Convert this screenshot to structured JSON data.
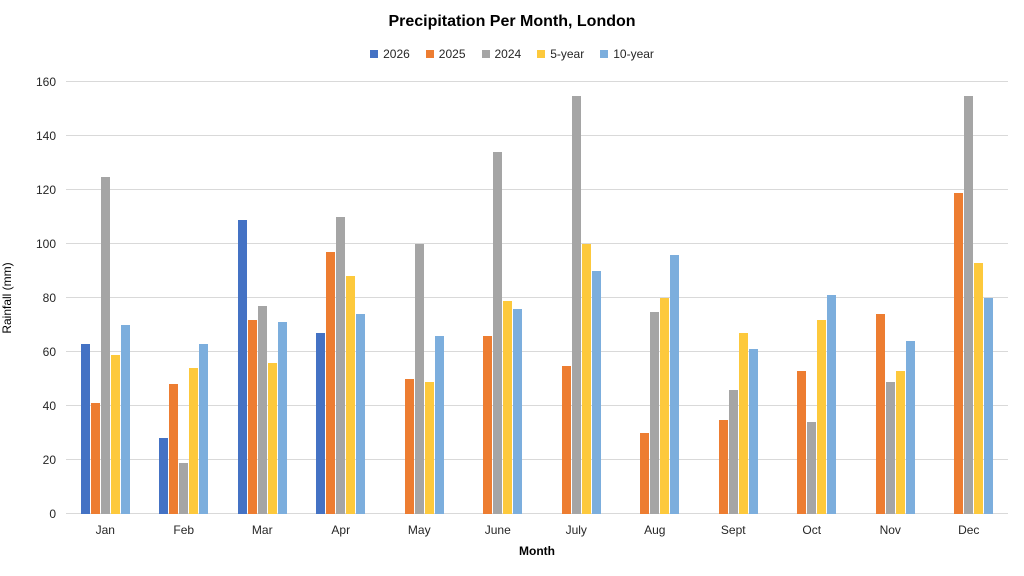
{
  "chart_data": {
    "type": "bar",
    "title": "Precipitation Per Month, London",
    "xlabel": "Month",
    "ylabel": "Rainfall (mm)",
    "ylim": [
      0,
      160
    ],
    "ytick_step": 20,
    "grid": true,
    "legend_position": "top-center",
    "gridline_color": "#d9d9d9",
    "categories": [
      "Jan",
      "Feb",
      "Mar",
      "Apr",
      "May",
      "June",
      "July",
      "Aug",
      "Sept",
      "Oct",
      "Nov",
      "Dec"
    ],
    "series": [
      {
        "name": "2026",
        "color": "#4472c4",
        "values": [
          63,
          28,
          109,
          67,
          null,
          null,
          null,
          null,
          null,
          null,
          null,
          null
        ]
      },
      {
        "name": "2025",
        "color": "#ed7d31",
        "values": [
          41,
          48,
          72,
          97,
          50,
          66,
          55,
          30,
          35,
          53,
          74,
          119
        ]
      },
      {
        "name": "2024",
        "color": "#a5a5a5",
        "values": [
          125,
          19,
          77,
          110,
          100,
          134,
          155,
          75,
          46,
          34,
          49,
          155
        ]
      },
      {
        "name": "5-year",
        "color": "#fdc93c",
        "values": [
          59,
          54,
          56,
          88,
          49,
          79,
          100,
          80,
          67,
          72,
          53,
          93
        ]
      },
      {
        "name": "10-year",
        "color": "#7caedd",
        "values": [
          70,
          63,
          71,
          74,
          66,
          76,
          90,
          96,
          61,
          81,
          64,
          80
        ]
      }
    ]
  }
}
